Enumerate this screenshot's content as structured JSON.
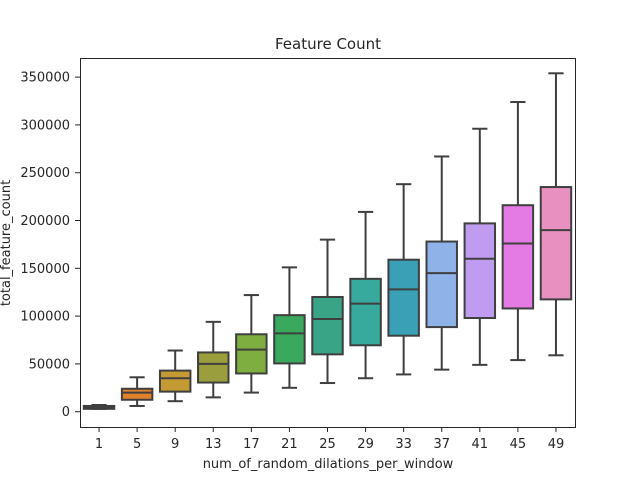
{
  "chart_data": {
    "type": "box",
    "title": "Feature Count",
    "xlabel": "num_of_random_dilations_per_window",
    "ylabel": "total_feature_count",
    "ylim": [
      -16000,
      370000
    ],
    "yticks": [
      0,
      50000,
      100000,
      150000,
      200000,
      250000,
      300000,
      350000
    ],
    "ytick_labels": [
      "0",
      "50000",
      "100000",
      "150000",
      "200000",
      "250000",
      "300000",
      "350000"
    ],
    "grid": false,
    "categories": [
      "1",
      "5",
      "9",
      "13",
      "17",
      "21",
      "25",
      "29",
      "33",
      "37",
      "41",
      "45",
      "49"
    ],
    "boxes": [
      {
        "category": "1",
        "min": 3000,
        "q1": 3000,
        "median": 4500,
        "q3": 6000,
        "max": 7000,
        "color": "#3274a1"
      },
      {
        "category": "5",
        "min": 6000,
        "q1": 12500,
        "median": 20000,
        "q3": 24000,
        "max": 36000,
        "color": "#e1812c"
      },
      {
        "category": "9",
        "min": 11000,
        "q1": 21000,
        "median": 35000,
        "q3": 43000,
        "max": 64000,
        "color": "#c49a35"
      },
      {
        "category": "13",
        "min": 15000,
        "q1": 30500,
        "median": 50000,
        "q3": 62000,
        "max": 94000,
        "color": "#9a9e3c"
      },
      {
        "category": "17",
        "min": 20000,
        "q1": 40000,
        "median": 65000,
        "q3": 81000,
        "max": 122000,
        "color": "#7dae3f"
      },
      {
        "category": "21",
        "min": 25000,
        "q1": 50500,
        "median": 82000,
        "q3": 101000,
        "max": 151000,
        "color": "#3aa95f"
      },
      {
        "category": "25",
        "min": 30000,
        "q1": 60000,
        "median": 97000,
        "q3": 120000,
        "max": 180000,
        "color": "#3aa487"
      },
      {
        "category": "29",
        "min": 35000,
        "q1": 69500,
        "median": 113000,
        "q3": 139000,
        "max": 209000,
        "color": "#37a99d"
      },
      {
        "category": "33",
        "min": 39000,
        "q1": 79500,
        "median": 128000,
        "q3": 159000,
        "max": 238000,
        "color": "#39a0b5"
      },
      {
        "category": "37",
        "min": 44000,
        "q1": 88500,
        "median": 145000,
        "q3": 178000,
        "max": 267000,
        "color": "#8fb2e8"
      },
      {
        "category": "41",
        "min": 49000,
        "q1": 98000,
        "median": 160000,
        "q3": 197000,
        "max": 296000,
        "color": "#c09cf0"
      },
      {
        "category": "45",
        "min": 54000,
        "q1": 108000,
        "median": 176000,
        "q3": 216000,
        "max": 324000,
        "color": "#e47ae3"
      },
      {
        "category": "49",
        "min": 59000,
        "q1": 117500,
        "median": 190000,
        "q3": 235000,
        "max": 354000,
        "color": "#e891c0"
      }
    ]
  }
}
